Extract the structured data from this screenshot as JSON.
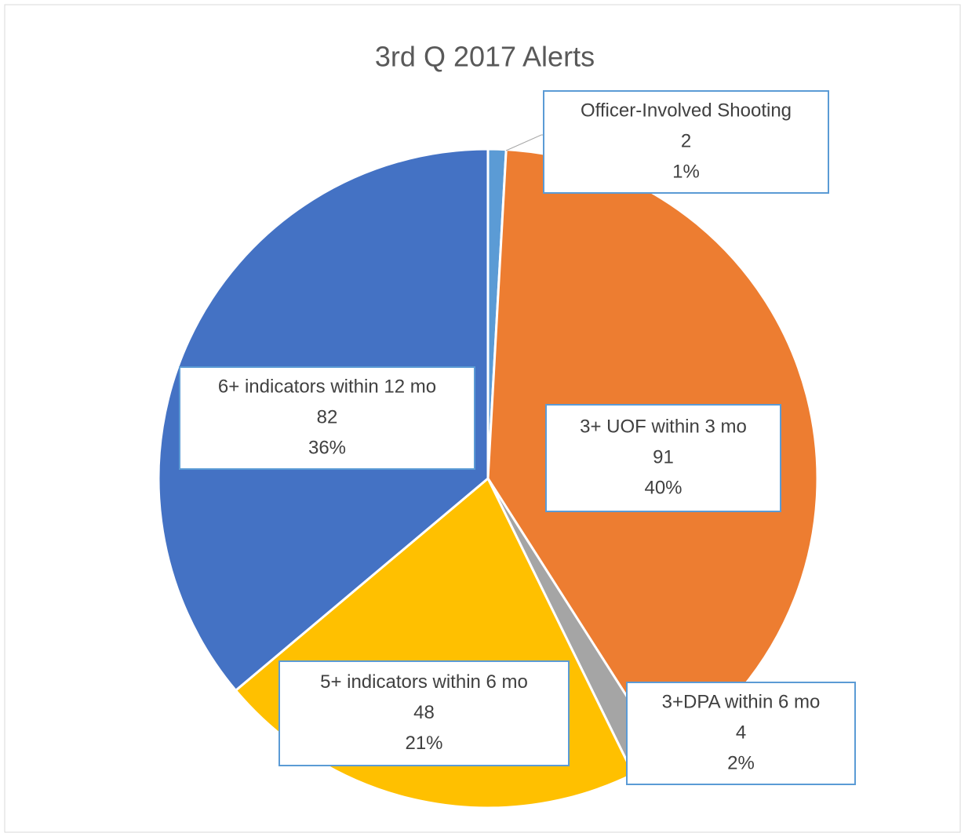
{
  "chart_data": {
    "type": "pie",
    "title": "3rd Q 2017 Alerts",
    "categories": [
      "Officer-Involved Shooting",
      "3+ UOF within 3 mo",
      "3+DPA within 6 mo",
      "5+ indicators within 6 mo",
      "6+ indicators within 12 mo"
    ],
    "values": [
      2,
      91,
      4,
      48,
      82
    ],
    "percent_labels": [
      "1%",
      "40%",
      "2%",
      "21%",
      "36%"
    ],
    "colors": [
      "#5b9bd5",
      "#ed7d31",
      "#a5a5a5",
      "#ffc000",
      "#4472c4"
    ]
  }
}
